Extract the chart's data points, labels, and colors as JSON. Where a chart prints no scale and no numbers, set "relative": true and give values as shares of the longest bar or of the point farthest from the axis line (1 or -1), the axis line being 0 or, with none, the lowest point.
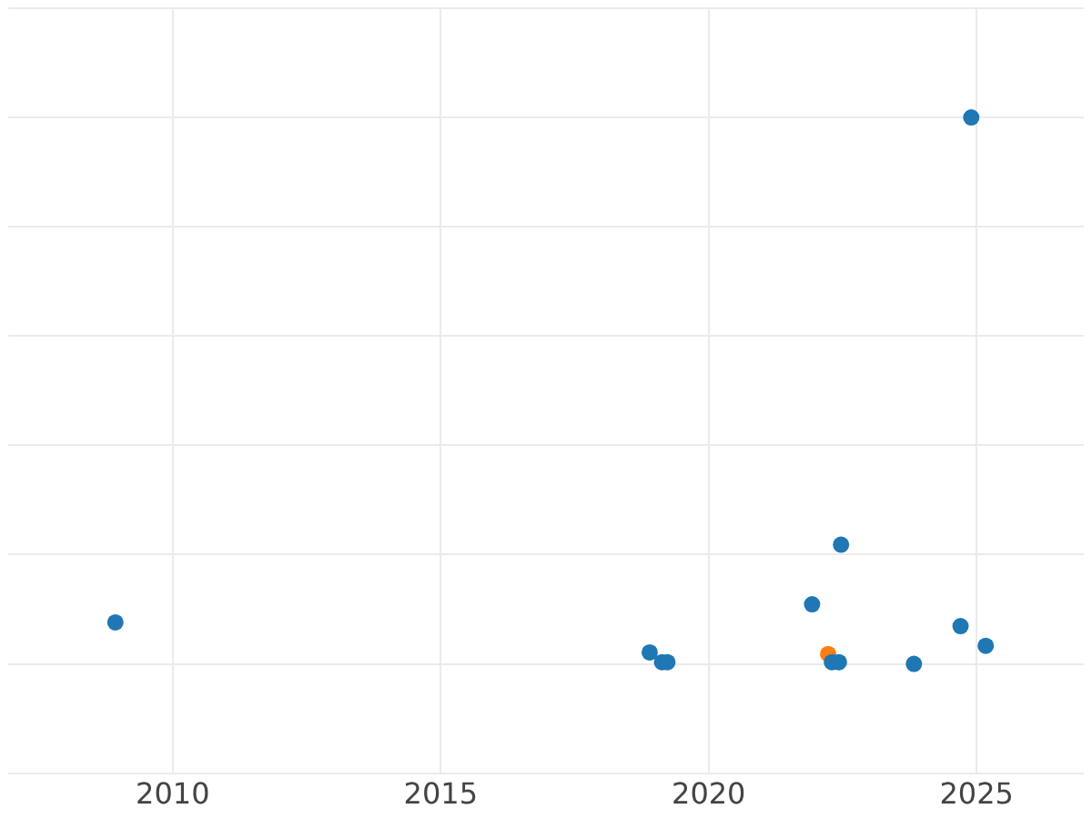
{
  "chart_data": {
    "type": "scatter",
    "relative": true,
    "grid": true,
    "marker": "circle",
    "xlim": [
      2006.93,
      2027
    ],
    "xticks": [
      2010,
      2015,
      2020,
      2025
    ],
    "series": [
      {
        "color": "#1f77b4",
        "x": [
          2008.93,
          2018.9,
          2019.13,
          2019.23,
          2021.93,
          2022.47,
          2022.3,
          2022.43,
          2023.83,
          2024.7,
          2025.17,
          2024.9
        ],
        "values": [
          0.076,
          0.021,
          0.003,
          0.003,
          0.109,
          0.218,
          0.003,
          0.003,
          0,
          0.069,
          0.033,
          1
        ]
      },
      {
        "color": "#ff7f0e",
        "x": [
          2022.23
        ],
        "values": [
          0.018
        ]
      }
    ]
  }
}
